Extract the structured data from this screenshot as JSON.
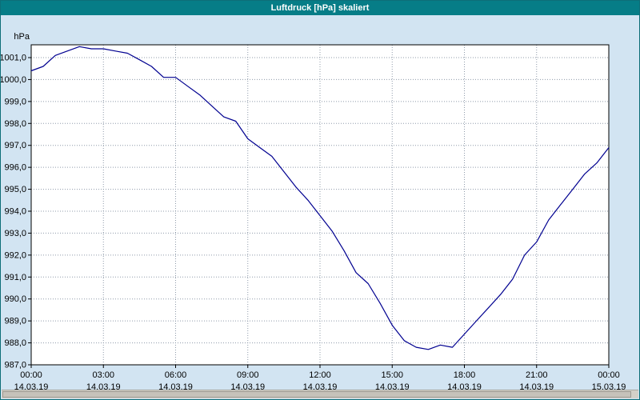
{
  "window": {
    "title": "Luftdruck [hPa] skaliert"
  },
  "chart_data": {
    "type": "line",
    "title": "Luftdruck [hPa] skaliert",
    "xlabel": "",
    "ylabel": "hPa",
    "unit_label": "hPa",
    "grid": true,
    "grid_color": "#8f9baa",
    "line_color": "#000090",
    "legend": "none",
    "ylim": [
      987.0,
      1001.6
    ],
    "y_tick_values": [
      1001,
      1000,
      999,
      998,
      997,
      996,
      995,
      994,
      993,
      992,
      991,
      990,
      989,
      988,
      987
    ],
    "y_tick_labels": [
      "1001,0",
      "1000,0",
      "999,0",
      "998,0",
      "997,0",
      "996,0",
      "995,0",
      "994,0",
      "993,0",
      "992,0",
      "991,0",
      "990,0",
      "989,0",
      "988,0",
      "987,0"
    ],
    "x_tick_hours": [
      0,
      3,
      6,
      9,
      12,
      15,
      18,
      21,
      24
    ],
    "x_tick_times": [
      "00:00",
      "03:00",
      "06:00",
      "09:00",
      "12:00",
      "15:00",
      "18:00",
      "21:00",
      "00:00"
    ],
    "x_tick_dates": [
      "14.03.19",
      "14.03.19",
      "14.03.19",
      "14.03.19",
      "14.03.19",
      "14.03.19",
      "14.03.19",
      "14.03.19",
      "15.03.19"
    ],
    "x_start_hour": 0,
    "x_step_hours": 0.5,
    "series": [
      {
        "name": "Luftdruck",
        "values": [
          1000.4,
          1000.6,
          1001.1,
          1001.3,
          1001.5,
          1001.4,
          1001.4,
          1001.3,
          1001.2,
          1000.9,
          1000.6,
          1000.1,
          1000.1,
          999.7,
          999.3,
          998.8,
          998.3,
          998.1,
          997.3,
          996.9,
          996.5,
          995.8,
          995.1,
          994.5,
          993.8,
          993.1,
          992.2,
          991.2,
          990.7,
          989.8,
          988.8,
          988.1,
          987.8,
          987.7,
          987.9,
          987.8,
          988.4,
          989.0,
          989.6,
          990.2,
          990.9,
          992.0,
          992.6,
          993.6,
          994.3,
          995.0,
          995.7,
          996.2,
          996.9
        ]
      }
    ]
  }
}
